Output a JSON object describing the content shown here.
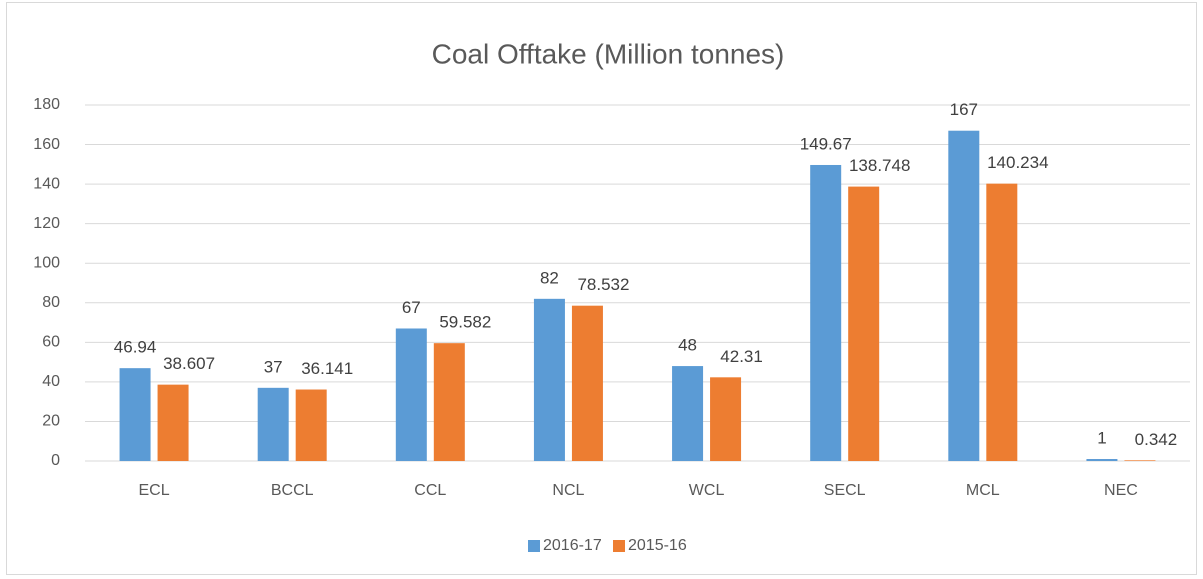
{
  "chart_data": {
    "type": "bar",
    "title": "Coal Offtake (Million tonnes)",
    "categories": [
      "ECL",
      "BCCL",
      "CCL",
      "NCL",
      "WCL",
      "SECL",
      "MCL",
      "NEC"
    ],
    "series": [
      {
        "name": "2016-17",
        "color": "#5b9bd5",
        "values": [
          46.94,
          37,
          67,
          82,
          48,
          149.67,
          167,
          1
        ]
      },
      {
        "name": "2015-16",
        "color": "#ed7d31",
        "values": [
          38.607,
          36.141,
          59.582,
          78.532,
          42.31,
          138.748,
          140.234,
          0.342
        ]
      }
    ],
    "ylim": [
      0,
      180
    ],
    "yticks": [
      0,
      20,
      40,
      60,
      80,
      100,
      120,
      140,
      160,
      180
    ],
    "grid": true,
    "legend": "bottom"
  }
}
